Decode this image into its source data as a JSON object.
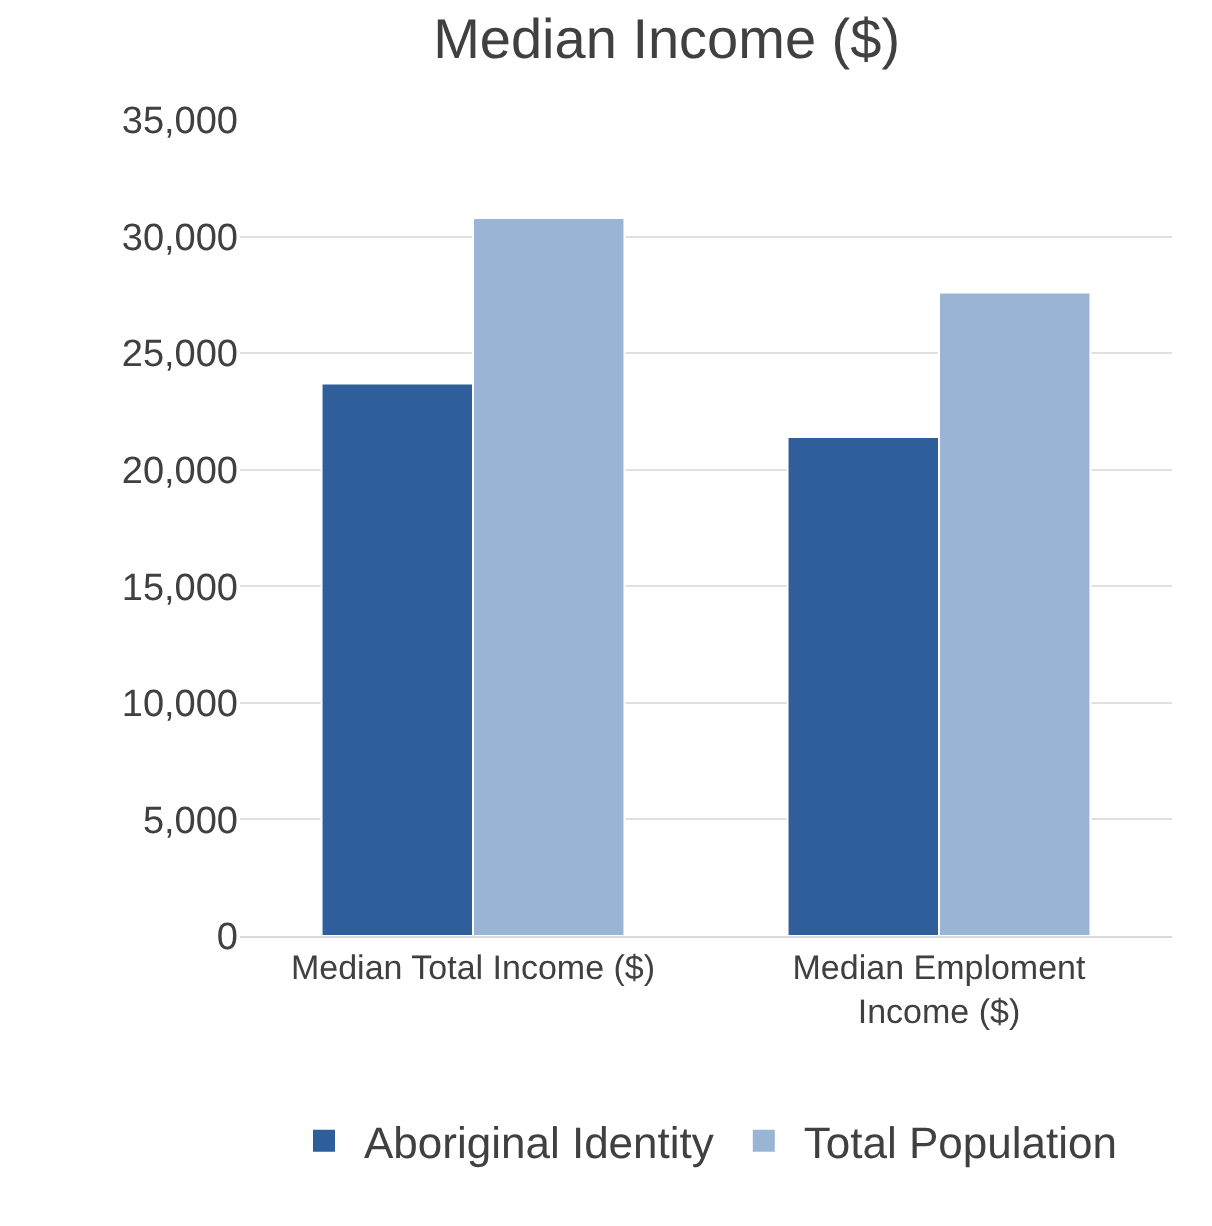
{
  "chart_data": {
    "type": "bar",
    "title": "Median Income ($)",
    "categories": [
      "Median Total Income ($)",
      "Median Emploment Income ($)"
    ],
    "series": [
      {
        "name": "Aboriginal Identity",
        "color": "#2f5f9a",
        "values": [
          23700,
          21400
        ]
      },
      {
        "name": "Total Population",
        "color": "#9ab4d6",
        "values": [
          30800,
          27600
        ]
      }
    ],
    "ylim": [
      0,
      35000
    ],
    "yticks": [
      {
        "value": 0,
        "label": "0"
      },
      {
        "value": 5000,
        "label": "5,000"
      },
      {
        "value": 10000,
        "label": "10,000"
      },
      {
        "value": 15000,
        "label": "15,000"
      },
      {
        "value": 20000,
        "label": "20,000"
      },
      {
        "value": 25000,
        "label": "25,000"
      },
      {
        "value": 30000,
        "label": "30,000"
      },
      {
        "value": 35000,
        "label": "35,000"
      }
    ],
    "grid": "y",
    "legend": "bottom"
  }
}
